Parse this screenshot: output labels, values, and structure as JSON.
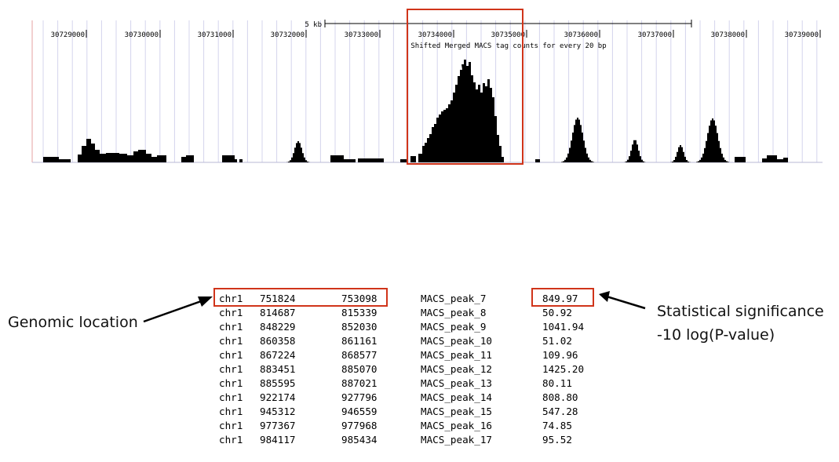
{
  "browser_track": {
    "scale_label": "5 kb",
    "track_title": "Shifted Merged MACS tag counts for every 20 bp",
    "ticks": [
      "30729000",
      "30730000",
      "30731000",
      "30732000",
      "30733000",
      "30734000",
      "30735000",
      "30736000",
      "30737000",
      "30738000",
      "30739000"
    ],
    "highlight_color": "#d0341a"
  },
  "peak_table": {
    "rows": [
      {
        "chrom": "chr1",
        "start": "751824",
        "end": "753098",
        "name": "MACS_peak_7",
        "score": "849.97"
      },
      {
        "chrom": "chr1",
        "start": "814687",
        "end": "815339",
        "name": "MACS_peak_8",
        "score": "50.92"
      },
      {
        "chrom": "chr1",
        "start": "848229",
        "end": "852030",
        "name": "MACS_peak_9",
        "score": "1041.94"
      },
      {
        "chrom": "chr1",
        "start": "860358",
        "end": "861161",
        "name": "MACS_peak_10",
        "score": "51.02"
      },
      {
        "chrom": "chr1",
        "start": "867224",
        "end": "868577",
        "name": "MACS_peak_11",
        "score": "109.96"
      },
      {
        "chrom": "chr1",
        "start": "883451",
        "end": "885070",
        "name": "MACS_peak_12",
        "score": "1425.20"
      },
      {
        "chrom": "chr1",
        "start": "885595",
        "end": "887021",
        "name": "MACS_peak_13",
        "score": "80.11"
      },
      {
        "chrom": "chr1",
        "start": "922174",
        "end": "927796",
        "name": "MACS_peak_14",
        "score": "808.80"
      },
      {
        "chrom": "chr1",
        "start": "945312",
        "end": "946559",
        "name": "MACS_peak_15",
        "score": "547.28"
      },
      {
        "chrom": "chr1",
        "start": "977367",
        "end": "977968",
        "name": "MACS_peak_16",
        "score": "74.85"
      },
      {
        "chrom": "chr1",
        "start": "984117",
        "end": "985434",
        "name": "MACS_peak_17",
        "score": "95.52"
      }
    ]
  },
  "annotations": {
    "location_label": "Genomic location",
    "significance_label_line1": "Statistical significance",
    "significance_label_line2": "-10 log(P-value)"
  }
}
